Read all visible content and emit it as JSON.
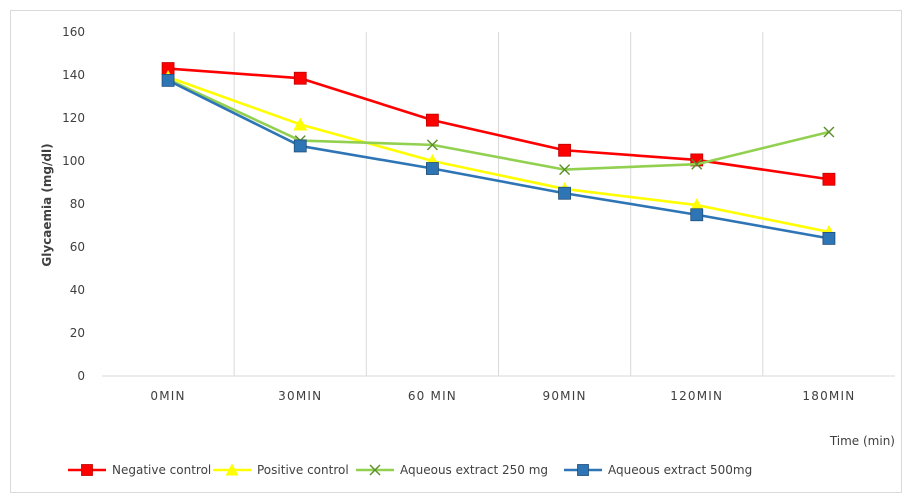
{
  "chart_data": {
    "type": "line",
    "categories": [
      "0MIN",
      "30MIN",
      "60 MIN",
      "90MIN",
      "120MIN",
      "180MIN"
    ],
    "xlabel": "Time (min)",
    "ylabel": "Glycaemia (mg/dl)",
    "ylim": [
      0,
      160
    ],
    "yticks": [
      0,
      20,
      40,
      60,
      80,
      100,
      120,
      140,
      160
    ],
    "grid": "vertical",
    "legend_position": "bottom",
    "series": [
      {
        "name": "Negative control",
        "color": "#ff0000",
        "marker": "square",
        "values": [
          143,
          138.5,
          119,
          105,
          100.5,
          91.5
        ]
      },
      {
        "name": "Positive control",
        "color": "#ffff00",
        "marker": "triangle",
        "values": [
          139,
          117,
          100,
          87,
          79.5,
          67
        ]
      },
      {
        "name": "Aqueous extract 250 mg",
        "color": "#92d050",
        "marker": "x",
        "values": [
          138,
          109.5,
          107.5,
          96,
          98.5,
          113.5
        ]
      },
      {
        "name": "Aqueous extract  500mg",
        "color": "#2e75b6",
        "marker": "square",
        "values": [
          137.5,
          107,
          96.5,
          85,
          75,
          64
        ]
      }
    ]
  }
}
